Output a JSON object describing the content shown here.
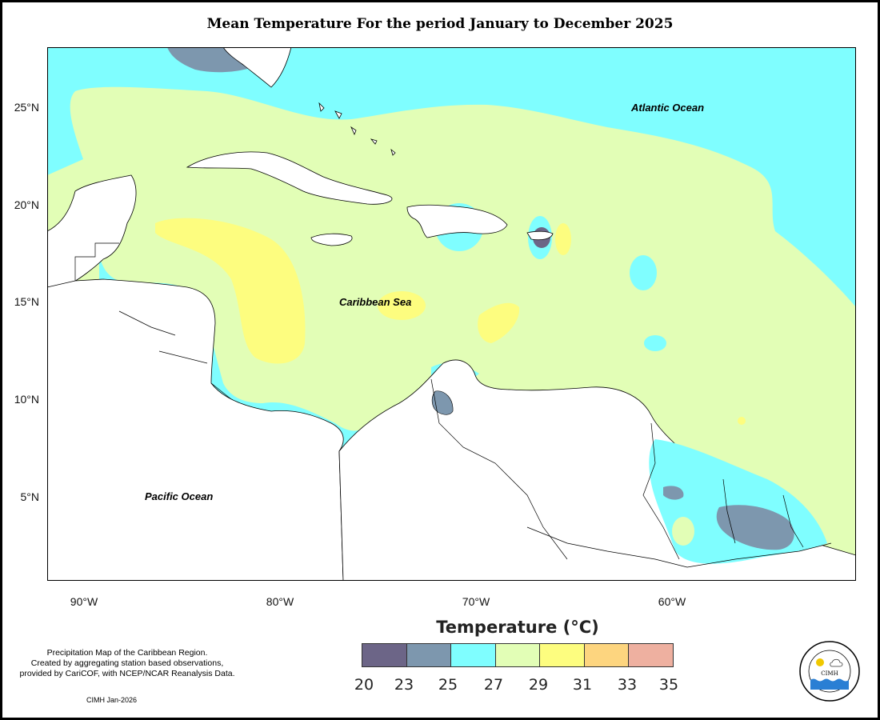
{
  "title": "Mean Temperature For the period January to December 2025",
  "map": {
    "lat_labels": [
      "25°N",
      "20°N",
      "15°N",
      "10°N",
      "5°N"
    ],
    "lon_labels": [
      "90°W",
      "80°W",
      "70°W",
      "60°W"
    ],
    "place_labels": {
      "atlantic": "Atlantic Ocean",
      "caribbean": "Caribbean Sea",
      "pacific": "Pacific Ocean"
    }
  },
  "legend": {
    "title": "Temperature (°C)",
    "colors": [
      "#6c6587",
      "#7d97ae",
      "#7ffeff",
      "#e2feb6",
      "#fdfd7f",
      "#fdd57f",
      "#eeb0a0"
    ],
    "ticks": [
      "20",
      "23",
      "25",
      "27",
      "29",
      "31",
      "33",
      "35"
    ]
  },
  "notes": {
    "line1": "Precipitation Map of the Caribbean Region.",
    "line2": "Created by aggregating station based observations,",
    "line3": "provided by CariCOF, with NCEP/NCAR Reanalysis Data.",
    "credit": "CIMH Jan-2026"
  },
  "logo": {
    "text": "CIMH",
    "ring_text": "Caribbean Institute for Meteorology and Hydrology"
  }
}
